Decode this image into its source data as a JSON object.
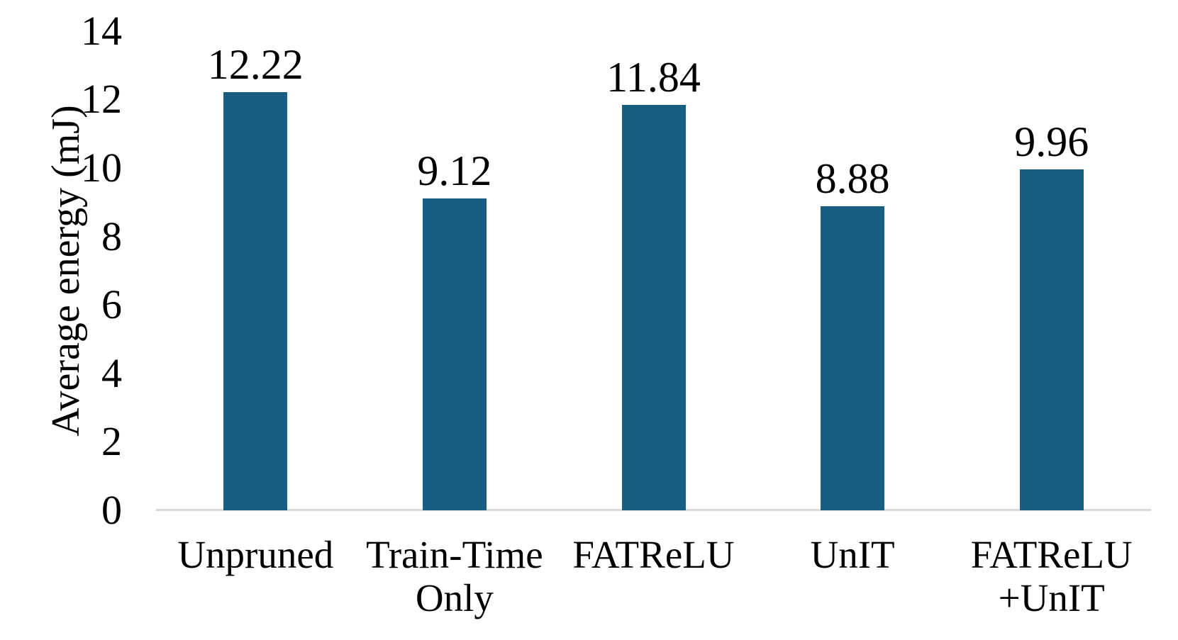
{
  "chart_data": {
    "type": "bar",
    "categories": [
      "Unpruned",
      "Train-Time\nOnly",
      "FATReLU",
      "UnIT",
      "FATReLU\n+UnIT"
    ],
    "values": [
      12.22,
      9.12,
      11.84,
      8.88,
      9.96
    ],
    "data_labels": [
      "12.22",
      "9.12",
      "11.84",
      "8.88",
      "9.96"
    ],
    "title": "",
    "xlabel": "",
    "ylabel": "Average energy (mJ)",
    "ylim": [
      0,
      14
    ],
    "yticks": [
      0,
      2,
      4,
      6,
      8,
      10,
      12,
      14
    ],
    "grid": false,
    "legend": false,
    "bar_color": "#175E82",
    "axis_color": "#D9D9D9",
    "text_color": "#000000"
  }
}
